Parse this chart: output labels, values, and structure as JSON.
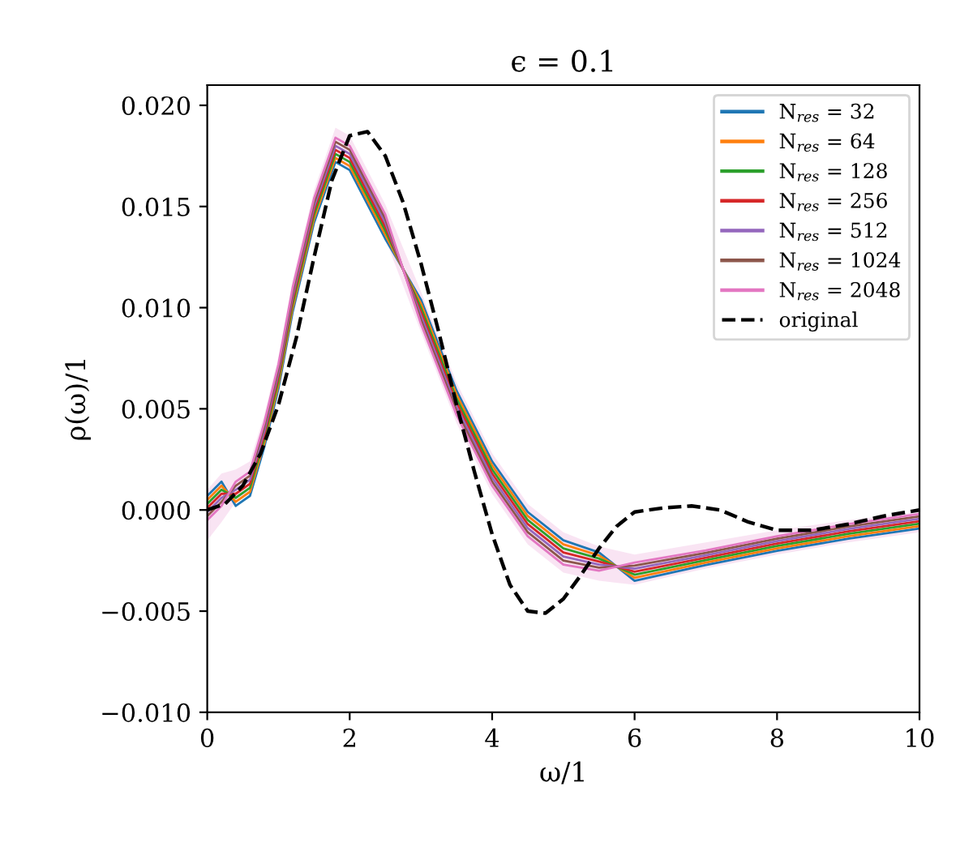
{
  "chart_data": {
    "type": "line",
    "title": "ϵ = 0.1",
    "xlabel": "ω/1",
    "ylabel": "ρ(ω)/1",
    "x": [
      0,
      0.2,
      0.4,
      0.6,
      0.8,
      1,
      1.2,
      1.5,
      1.8,
      2,
      2.5,
      3,
      3.5,
      4,
      4.5,
      5,
      5.5,
      6,
      7,
      8,
      9,
      10
    ],
    "series": [
      {
        "name": "N$_{res}$ = 32",
        "color": "#1f77b4",
        "values": [
          0.0007,
          0.0014,
          0.0002,
          0.0007,
          0.0031,
          0.006,
          0.0098,
          0.0142,
          0.0172,
          0.0168,
          0.0134,
          0.0104,
          0.0059,
          0.0024,
          -0.0001,
          -0.0015,
          -0.0021,
          -0.0035,
          -0.00272,
          -0.00202,
          -0.00142,
          -0.00092
        ]
      },
      {
        "name": "N$_{res}$ = 64",
        "color": "#ff7f0e",
        "values": [
          0.0005,
          0.0012,
          0.0004,
          0.0009,
          0.0033,
          0.0062,
          0.01,
          0.0144,
          0.0174,
          0.017,
          0.0136,
          0.0102,
          0.0057,
          0.0022,
          -0.0003,
          -0.0017,
          -0.00225,
          -0.00335,
          -0.0026,
          -0.0019,
          -0.0013,
          -0.0008
        ]
      },
      {
        "name": "N$_{res}$ = 128",
        "color": "#2ca02c",
        "values": [
          0.0003,
          0.001,
          0.0006,
          0.0011,
          0.0035,
          0.0064,
          0.0102,
          0.0146,
          0.0176,
          0.0172,
          0.0138,
          0.01,
          0.0055,
          0.002,
          -0.0005,
          -0.0019,
          -0.0024,
          -0.0032,
          -0.00248,
          -0.00178,
          -0.00118,
          -0.00068
        ]
      },
      {
        "name": "N$_{res}$ = 256",
        "color": "#d62728",
        "values": [
          0.0001,
          0.0008,
          0.0008,
          0.0013,
          0.0037,
          0.0066,
          0.0104,
          0.0148,
          0.0178,
          0.0174,
          0.014,
          0.0098,
          0.0053,
          0.0018,
          -0.0007,
          -0.0021,
          -0.00255,
          -0.00305,
          -0.00236,
          -0.00166,
          -0.00106,
          -0.00056
        ]
      },
      {
        "name": "N$_{res}$ = 512",
        "color": "#9467bd",
        "values": [
          -0.0001,
          0.0006,
          0.001,
          0.0015,
          0.0039,
          0.0068,
          0.0106,
          0.015,
          0.018,
          0.0176,
          0.0142,
          0.0096,
          0.0051,
          0.0016,
          -0.0009,
          -0.0023,
          -0.0027,
          -0.0029,
          -0.00224,
          -0.00154,
          -0.00094,
          -0.00044
        ]
      },
      {
        "name": "N$_{res}$ = 1024",
        "color": "#8c564b",
        "values": [
          -0.0003,
          0.0004,
          0.0012,
          0.0017,
          0.0041,
          0.007,
          0.0108,
          0.0152,
          0.0182,
          0.0178,
          0.0144,
          0.0094,
          0.0049,
          0.0014,
          -0.0011,
          -0.0025,
          -0.00285,
          -0.00275,
          -0.00212,
          -0.00142,
          -0.00082,
          -0.00032
        ]
      },
      {
        "name": "N$_{res}$ = 2048",
        "color": "#e377c2",
        "values": [
          -0.0005,
          0.0002,
          0.0014,
          0.0019,
          0.0043,
          0.0072,
          0.011,
          0.0154,
          0.0184,
          0.018,
          0.0146,
          0.0092,
          0.0047,
          0.0012,
          -0.0013,
          -0.0027,
          -0.003,
          -0.0026,
          -0.002,
          -0.0013,
          -0.0007,
          -0.0002
        ],
        "lower": [
          -0.0015,
          -0.0006,
          0.0004,
          0.001,
          0.0033,
          0.006,
          0.0098,
          0.0142,
          0.0172,
          0.0168,
          0.0134,
          0.0088,
          0.0043,
          0.0008,
          -0.0017,
          -0.0031,
          -0.0035,
          -0.0037,
          -0.0029,
          -0.0022,
          -0.0016,
          -0.0011
        ],
        "upper": [
          0.001,
          0.0018,
          0.002,
          0.0024,
          0.0047,
          0.0076,
          0.0114,
          0.0158,
          0.0189,
          0.0185,
          0.0151,
          0.0108,
          0.0063,
          0.0028,
          0.0003,
          -0.0011,
          -0.0018,
          -0.0022,
          -0.0016,
          -0.001,
          -0.0005,
          -0.0001
        ]
      },
      {
        "name": "original",
        "color": "#000000",
        "line_style": "dashed",
        "x": [
          0,
          0.25,
          0.5,
          0.75,
          1,
          1.25,
          1.5,
          1.75,
          2,
          2.25,
          2.5,
          2.75,
          3,
          3.25,
          3.5,
          3.75,
          4,
          4.25,
          4.5,
          4.75,
          5,
          5.25,
          5.5,
          5.75,
          6,
          6.4,
          6.8,
          7.2,
          7.6,
          8,
          8.5,
          9,
          9.5,
          10
        ],
        "values": [
          0,
          0.0003,
          0.0012,
          0.0028,
          0.0052,
          0.0085,
          0.0125,
          0.0163,
          0.0185,
          0.0187,
          0.0175,
          0.0152,
          0.0122,
          0.0088,
          0.0052,
          0.0019,
          -0.0012,
          -0.0037,
          -0.005,
          -0.0051,
          -0.0044,
          -0.0032,
          -0.0019,
          -0.0008,
          -0.0001,
          0.0001,
          0.0002,
          0,
          -0.0006,
          -0.001,
          -0.001,
          -0.0007,
          -0.0003,
          0
        ]
      }
    ],
    "xlim": [
      0,
      10
    ],
    "ylim": [
      -0.01,
      0.021
    ],
    "xticks": [
      0,
      2,
      4,
      6,
      8,
      10
    ],
    "yticks": [
      {
        "value": -0.01,
        "label": "−0.010"
      },
      {
        "value": -0.005,
        "label": "−0.005"
      },
      {
        "value": 0,
        "label": "0.000"
      },
      {
        "value": 0.005,
        "label": "0.005"
      },
      {
        "value": 0.01,
        "label": "0.010"
      },
      {
        "value": 0.015,
        "label": "0.015"
      },
      {
        "value": 0.02,
        "label": "0.020"
      }
    ],
    "legend": "top right",
    "grid": false
  }
}
